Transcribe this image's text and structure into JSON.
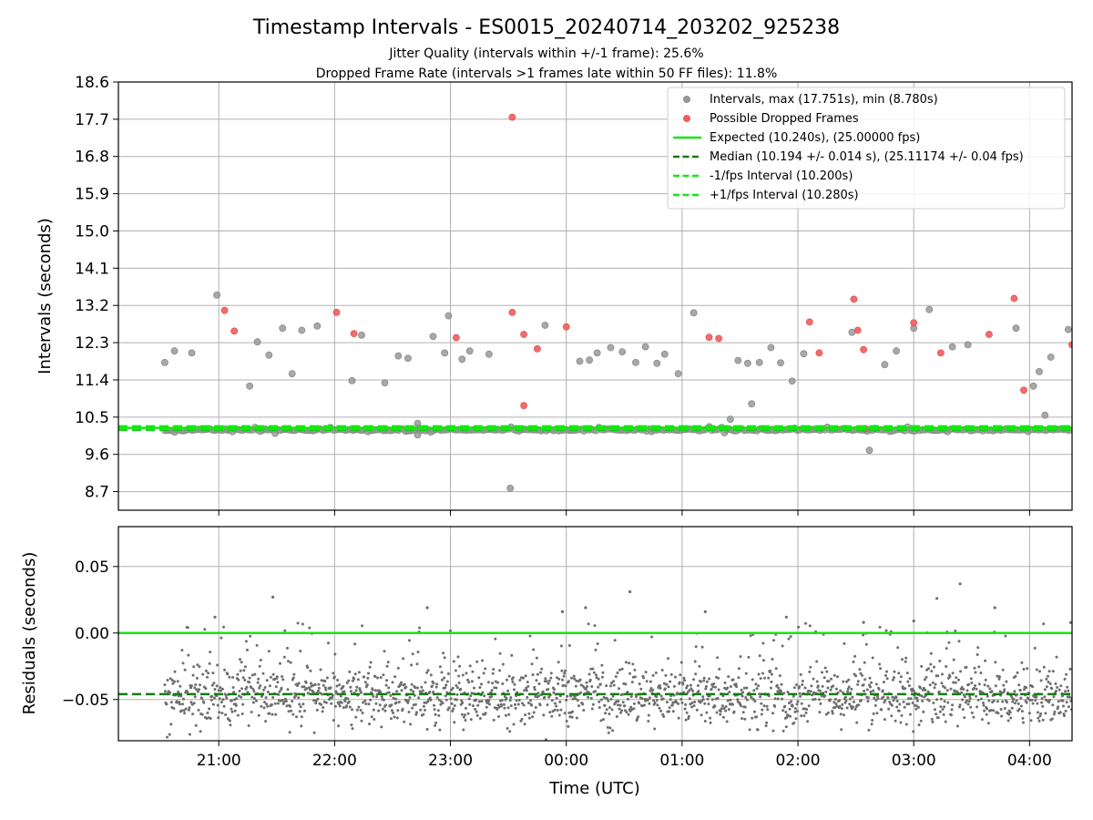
{
  "title": "Timestamp Intervals - ES0015_20240714_203202_925238",
  "subtitle_1": "Jitter Quality (intervals within +/-1 frame): 25.6%",
  "subtitle_2": "Dropped Frame Rate (intervals >1 frames late within 50 FF files): 11.8%",
  "colors": {
    "interval_points": "#999999",
    "dropped_points": "#f25c5c",
    "expected_line": "#15e615",
    "median_line": "#137c13",
    "residual_points": "#6e6e6e",
    "grid": "#b0b0b0"
  },
  "chart_data": [
    {
      "type": "scatter",
      "ylabel": "Intervals (seconds)",
      "xlim": [
        "2024-07-14T20:08",
        "2024-07-15T04:22"
      ],
      "ylim": [
        8.25,
        18.6
      ],
      "y_ticks": [
        "18.6",
        "17.7",
        "16.8",
        "15.9",
        "15.0",
        "14.1",
        "13.2",
        "12.3",
        "11.4",
        "10.5",
        "9.6",
        "8.7"
      ],
      "y_tick_values": [
        18.6,
        17.7,
        16.8,
        15.9,
        15.0,
        14.1,
        13.2,
        12.3,
        11.4,
        10.5,
        9.6,
        8.7
      ],
      "grid": true,
      "legend": {
        "placement": "top-right",
        "entries": [
          "Intervals, max (17.751s), min (8.780s)",
          "Possible Dropped Frames",
          "Expected (10.240s), (25.00000 fps)",
          "Median (10.194 +/- 0.014 s), (25.11174 +/- 0.04 fps)",
          "-1/fps Interval (10.200s)",
          "+1/fps Interval (10.280s)"
        ]
      },
      "reference_lines": [
        {
          "name": "Expected",
          "y": 10.24,
          "style": "solid"
        },
        {
          "name": "Median",
          "y": 10.194,
          "style": "dashed"
        },
        {
          "name": "-1/fps Interval",
          "y": 10.2,
          "style": "dashed"
        },
        {
          "name": "+1/fps Interval",
          "y": 10.28,
          "style": "dashed"
        }
      ],
      "series": [
        {
          "name": "Intervals",
          "points": [
            [
              "20:32",
              11.82
            ],
            [
              "20:37",
              12.1
            ],
            [
              "20:46",
              12.05
            ],
            [
              "20:59",
              13.45
            ],
            [
              "21:16",
              11.25
            ],
            [
              "21:20",
              12.32
            ],
            [
              "21:26",
              12.0
            ],
            [
              "21:33",
              12.65
            ],
            [
              "21:38",
              11.55
            ],
            [
              "21:43",
              12.6
            ],
            [
              "21:51",
              12.7
            ],
            [
              "22:09",
              11.38
            ],
            [
              "22:14",
              12.48
            ],
            [
              "22:26",
              11.33
            ],
            [
              "22:33",
              11.98
            ],
            [
              "22:38",
              11.92
            ],
            [
              "22:51",
              12.45
            ],
            [
              "22:57",
              12.05
            ],
            [
              "22:59",
              12.95
            ],
            [
              "23:06",
              11.9
            ],
            [
              "23:10",
              12.1
            ],
            [
              "23:20",
              12.02
            ],
            [
              "23:31",
              8.78
            ],
            [
              "23:49",
              12.72
            ],
            [
              "24:07",
              11.85
            ],
            [
              "24:12",
              11.88
            ],
            [
              "24:16",
              12.05
            ],
            [
              "24:23",
              12.18
            ],
            [
              "24:29",
              12.08
            ],
            [
              "24:36",
              11.82
            ],
            [
              "24:41",
              12.2
            ],
            [
              "24:47",
              11.8
            ],
            [
              "24:51",
              12.02
            ],
            [
              "24:58",
              11.55
            ],
            [
              "25:06",
              13.02
            ],
            [
              "25:25",
              10.45
            ],
            [
              "25:29",
              11.87
            ],
            [
              "25:34",
              11.8
            ],
            [
              "25:36",
              10.82
            ],
            [
              "25:40",
              11.82
            ],
            [
              "25:46",
              12.18
            ],
            [
              "25:51",
              11.81
            ],
            [
              "25:57",
              11.37
            ],
            [
              "26:03",
              12.03
            ],
            [
              "26:28",
              12.55
            ],
            [
              "26:37",
              9.7
            ],
            [
              "26:45",
              11.77
            ],
            [
              "26:51",
              12.1
            ],
            [
              "27:00",
              12.65
            ],
            [
              "27:08",
              13.1
            ],
            [
              "27:20",
              12.2
            ],
            [
              "27:28",
              12.25
            ],
            [
              "27:53",
              12.65
            ],
            [
              "28:02",
              11.25
            ],
            [
              "28:05",
              11.6
            ],
            [
              "28:08",
              10.55
            ],
            [
              "28:11",
              11.95
            ],
            [
              "28:20",
              12.62
            ],
            [
              "22:43",
              10.35
            ],
            [
              "22:43",
              10.07
            ]
          ]
        },
        {
          "name": "Possible Dropped Frames",
          "points": [
            [
              "21:03",
              13.08
            ],
            [
              "21:08",
              12.58
            ],
            [
              "22:01",
              13.03
            ],
            [
              "22:10",
              12.52
            ],
            [
              "23:03",
              12.42
            ],
            [
              "23:32",
              17.75
            ],
            [
              "23:32",
              13.03
            ],
            [
              "23:38",
              10.78
            ],
            [
              "23:38",
              12.5
            ],
            [
              "23:45",
              12.15
            ],
            [
              "24:00",
              12.68
            ],
            [
              "25:14",
              12.43
            ],
            [
              "25:19",
              12.4
            ],
            [
              "26:06",
              12.8
            ],
            [
              "26:11",
              12.05
            ],
            [
              "26:29",
              13.35
            ],
            [
              "26:31",
              12.6
            ],
            [
              "26:34",
              12.13
            ],
            [
              "26:35",
              10.22
            ],
            [
              "27:00",
              12.78
            ],
            [
              "27:14",
              12.05
            ],
            [
              "27:39",
              12.5
            ],
            [
              "27:52",
              13.37
            ],
            [
              "27:57",
              11.15
            ],
            [
              "28:22",
              12.25
            ]
          ]
        }
      ]
    },
    {
      "type": "scatter",
      "xlabel": "Time (UTC)",
      "ylabel": "Residuals (seconds)",
      "ylim": [
        -0.081,
        0.08
      ],
      "y_ticks": [
        "0.05",
        "0.00",
        "−0.05"
      ],
      "y_tick_values": [
        0.05,
        0.0,
        -0.05
      ],
      "x_ticks": [
        "21:00",
        "22:00",
        "23:00",
        "00:00",
        "01:00",
        "02:00",
        "03:00",
        "04:00"
      ],
      "grid": true,
      "reference_lines": [
        {
          "name": "Expected",
          "y": 0.0,
          "style": "solid"
        },
        {
          "name": "Median",
          "y": -0.046,
          "style": "dashed"
        }
      ],
      "residual_summary": {
        "x_start": "20:32",
        "x_end": "28:22",
        "center": -0.047,
        "spread": 0.011,
        "min": -0.081,
        "max": 0.037
      },
      "series": [
        {
          "name": "Residuals",
          "points": [
            [
              "21:28",
              0.027
            ],
            [
              "22:48",
              0.019
            ],
            [
              "24:10",
              0.019
            ],
            [
              "24:33",
              0.031
            ],
            [
              "25:12",
              0.016
            ],
            [
              "27:12",
              0.026
            ],
            [
              "27:24",
              0.037
            ],
            [
              "27:42",
              0.019
            ],
            [
              "20:58",
              0.012
            ],
            [
              "23:58",
              0.016
            ],
            [
              "25:54",
              0.012
            ],
            [
              "26:34",
              0.008
            ],
            [
              "27:00",
              0.009
            ]
          ]
        }
      ]
    }
  ]
}
